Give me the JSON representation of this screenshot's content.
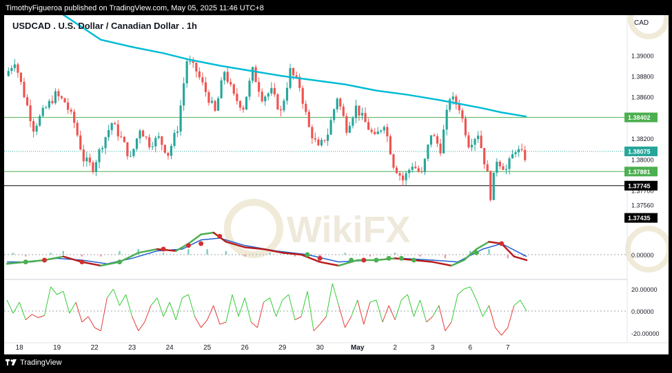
{
  "header": {
    "published": "TimothyFigueroa published on TradingView.com, May 05, 2025 11:46 UTC+8"
  },
  "footer": {
    "brand": "TradingView"
  },
  "colors": {
    "up": "#26a69a",
    "down": "#ef5350",
    "ma": "#00bcd4",
    "green_line": "#4caf50",
    "black_line": "#000000",
    "macd_fast": "#2e7d32",
    "macd_slow": "#1e60d0",
    "macd_dark": "#b71c1c",
    "osc_up": "#33cc33",
    "osc_down": "#e53935"
  },
  "chart_data": {
    "type": "candlestick",
    "title": "USDCAD . U.S. Dollar / Canadian Dollar . 1h",
    "currency": "CAD",
    "x_ticks": [
      "18",
      "19",
      "22",
      "23",
      "24",
      "25",
      "26",
      "29",
      "30",
      "May",
      "2",
      "3",
      "6",
      "7"
    ],
    "y_ticks": [
      "1.39000",
      "1.38800",
      "1.38600",
      "1.38200",
      "1.38000",
      "1.37700",
      "1.37560"
    ],
    "ylim": [
      1.3728,
      1.3932
    ],
    "price_labels": [
      {
        "text": "1.38402",
        "value": 1.38402,
        "bg": "#4caf50",
        "fg": "#ffffff"
      },
      {
        "text": "1.38075",
        "value": 1.38075,
        "bg": "#26a69a",
        "fg": "#ffffff"
      },
      {
        "text": "1.37881",
        "value": 1.37881,
        "bg": "#4caf50",
        "fg": "#ffffff"
      },
      {
        "text": "1.37745",
        "value": 1.37745,
        "bg": "#000000",
        "fg": "#ffffff"
      },
      {
        "text": "1.37435",
        "value": 1.37435,
        "bg": "#000000",
        "fg": "#ffffff"
      }
    ],
    "horizontal_lines": [
      {
        "value": 1.38402,
        "style": "solid",
        "color": "#4caf50"
      },
      {
        "value": 1.37881,
        "style": "solid",
        "color": "#4caf50"
      },
      {
        "value": 1.37745,
        "style": "solid",
        "color": "#000000"
      },
      {
        "value": 1.38075,
        "style": "dotted",
        "color": "#26a69a"
      }
    ],
    "price_path": [
      {
        "t": 0,
        "p": 1.388
      },
      {
        "t": 3,
        "p": 1.3895
      },
      {
        "t": 6,
        "p": 1.3862
      },
      {
        "t": 9,
        "p": 1.383
      },
      {
        "t": 12,
        "p": 1.3845
      },
      {
        "t": 16,
        "p": 1.3862
      },
      {
        "t": 19,
        "p": 1.3855
      },
      {
        "t": 22,
        "p": 1.3835
      },
      {
        "t": 25,
        "p": 1.38
      },
      {
        "t": 28,
        "p": 1.3792
      },
      {
        "t": 31,
        "p": 1.3815
      },
      {
        "t": 34,
        "p": 1.3835
      },
      {
        "t": 37,
        "p": 1.382
      },
      {
        "t": 40,
        "p": 1.38
      },
      {
        "t": 43,
        "p": 1.383
      },
      {
        "t": 46,
        "p": 1.3815
      },
      {
        "t": 49,
        "p": 1.382
      },
      {
        "t": 52,
        "p": 1.3805
      },
      {
        "t": 55,
        "p": 1.383
      },
      {
        "t": 58,
        "p": 1.3895
      },
      {
        "t": 61,
        "p": 1.3885
      },
      {
        "t": 64,
        "p": 1.3865
      },
      {
        "t": 67,
        "p": 1.3845
      },
      {
        "t": 70,
        "p": 1.3885
      },
      {
        "t": 73,
        "p": 1.386
      },
      {
        "t": 76,
        "p": 1.385
      },
      {
        "t": 79,
        "p": 1.3885
      },
      {
        "t": 82,
        "p": 1.386
      },
      {
        "t": 85,
        "p": 1.3865
      },
      {
        "t": 88,
        "p": 1.3845
      },
      {
        "t": 91,
        "p": 1.3885
      },
      {
        "t": 94,
        "p": 1.387
      },
      {
        "t": 97,
        "p": 1.383
      },
      {
        "t": 100,
        "p": 1.381
      },
      {
        "t": 103,
        "p": 1.3825
      },
      {
        "t": 106,
        "p": 1.386
      },
      {
        "t": 109,
        "p": 1.383
      },
      {
        "t": 112,
        "p": 1.385
      },
      {
        "t": 115,
        "p": 1.3835
      },
      {
        "t": 118,
        "p": 1.382
      },
      {
        "t": 121,
        "p": 1.3835
      },
      {
        "t": 124,
        "p": 1.3795
      },
      {
        "t": 127,
        "p": 1.378
      },
      {
        "t": 130,
        "p": 1.3795
      },
      {
        "t": 133,
        "p": 1.3785
      },
      {
        "t": 136,
        "p": 1.3825
      },
      {
        "t": 139,
        "p": 1.381
      },
      {
        "t": 142,
        "p": 1.386
      },
      {
        "t": 145,
        "p": 1.385
      },
      {
        "t": 148,
        "p": 1.3815
      },
      {
        "t": 151,
        "p": 1.3825
      },
      {
        "t": 154,
        "p": 1.3785
      },
      {
        "t": 155,
        "p": 1.3765
      },
      {
        "t": 157,
        "p": 1.38
      },
      {
        "t": 160,
        "p": 1.379
      },
      {
        "t": 163,
        "p": 1.381
      },
      {
        "t": 166,
        "p": 1.3802
      }
    ],
    "moving_average": [
      {
        "t": 0,
        "p": 1.3978
      },
      {
        "t": 10,
        "p": 1.3955
      },
      {
        "t": 20,
        "p": 1.3935
      },
      {
        "t": 30,
        "p": 1.3915
      },
      {
        "t": 40,
        "p": 1.3908
      },
      {
        "t": 50,
        "p": 1.3902
      },
      {
        "t": 58,
        "p": 1.3896
      },
      {
        "t": 68,
        "p": 1.389
      },
      {
        "t": 78,
        "p": 1.3885
      },
      {
        "t": 88,
        "p": 1.388
      },
      {
        "t": 98,
        "p": 1.3876
      },
      {
        "t": 108,
        "p": 1.3872
      },
      {
        "t": 118,
        "p": 1.3866
      },
      {
        "t": 128,
        "p": 1.3862
      },
      {
        "t": 138,
        "p": 1.3857
      },
      {
        "t": 145,
        "p": 1.3853
      },
      {
        "t": 152,
        "p": 1.3849
      },
      {
        "t": 158,
        "p": 1.3845
      },
      {
        "t": 166,
        "p": 1.3841
      }
    ],
    "macd": {
      "zero_label": "0.00000",
      "ylim": [
        -0.0012,
        0.0018
      ],
      "fast": [
        {
          "t": 0,
          "v": -0.0005
        },
        {
          "t": 6,
          "v": -0.0004
        },
        {
          "t": 12,
          "v": -0.0003
        },
        {
          "t": 18,
          "v": -0.0001
        },
        {
          "t": 24,
          "v": -0.0004
        },
        {
          "t": 30,
          "v": -0.0006
        },
        {
          "t": 36,
          "v": -0.0004
        },
        {
          "t": 42,
          "v": 0.0001
        },
        {
          "t": 48,
          "v": 0.0003
        },
        {
          "t": 54,
          "v": 0.0002
        },
        {
          "t": 58,
          "v": 0.0006
        },
        {
          "t": 62,
          "v": 0.0011
        },
        {
          "t": 66,
          "v": 0.0012
        },
        {
          "t": 70,
          "v": 0.0007
        },
        {
          "t": 76,
          "v": 0.0004
        },
        {
          "t": 82,
          "v": 0.0003
        },
        {
          "t": 88,
          "v": 0.0001
        },
        {
          "t": 94,
          "v": 0.0
        },
        {
          "t": 100,
          "v": -0.0004
        },
        {
          "t": 106,
          "v": -0.0006
        },
        {
          "t": 112,
          "v": -0.0003
        },
        {
          "t": 118,
          "v": -0.0003
        },
        {
          "t": 124,
          "v": -0.0002
        },
        {
          "t": 130,
          "v": -0.0003
        },
        {
          "t": 136,
          "v": -0.0004
        },
        {
          "t": 142,
          "v": -0.0006
        },
        {
          "t": 146,
          "v": -0.0003
        },
        {
          "t": 150,
          "v": 0.0003
        },
        {
          "t": 154,
          "v": 0.0007
        },
        {
          "t": 158,
          "v": 0.0006
        },
        {
          "t": 162,
          "v": -0.0001
        },
        {
          "t": 166,
          "v": -0.0003
        }
      ],
      "slow": [
        {
          "t": 0,
          "v": -0.0004
        },
        {
          "t": 8,
          "v": -0.0004
        },
        {
          "t": 16,
          "v": -0.0002
        },
        {
          "t": 24,
          "v": -0.0003
        },
        {
          "t": 32,
          "v": -0.0005
        },
        {
          "t": 40,
          "v": -0.0002
        },
        {
          "t": 48,
          "v": 0.0002
        },
        {
          "t": 56,
          "v": 0.0003
        },
        {
          "t": 62,
          "v": 0.0008
        },
        {
          "t": 68,
          "v": 0.0009
        },
        {
          "t": 76,
          "v": 0.0005
        },
        {
          "t": 86,
          "v": 0.0002
        },
        {
          "t": 96,
          "v": 0.0
        },
        {
          "t": 106,
          "v": -0.0004
        },
        {
          "t": 116,
          "v": -0.0003
        },
        {
          "t": 126,
          "v": -0.0002
        },
        {
          "t": 136,
          "v": -0.0003
        },
        {
          "t": 144,
          "v": -0.0004
        },
        {
          "t": 152,
          "v": 0.0003
        },
        {
          "t": 158,
          "v": 0.0006
        },
        {
          "t": 166,
          "v": -0.0001
        }
      ],
      "histogram": [
        {
          "t": 2,
          "v": 0.0001
        },
        {
          "t": 6,
          "v": -0.0001
        },
        {
          "t": 14,
          "v": 0.0001
        },
        {
          "t": 18,
          "v": 0.0002
        },
        {
          "t": 24,
          "v": -0.0001
        },
        {
          "t": 30,
          "v": -0.0001
        },
        {
          "t": 36,
          "v": 0.0002
        },
        {
          "t": 42,
          "v": 0.0003
        },
        {
          "t": 50,
          "v": 0.0001
        },
        {
          "t": 58,
          "v": 0.0003
        },
        {
          "t": 64,
          "v": 0.0003
        },
        {
          "t": 70,
          "v": 0.0002
        },
        {
          "t": 76,
          "v": -0.0001
        },
        {
          "t": 84,
          "v": 0.0001
        },
        {
          "t": 92,
          "v": -0.0001
        },
        {
          "t": 100,
          "v": -0.0002
        },
        {
          "t": 108,
          "v": 0.0001
        },
        {
          "t": 116,
          "v": -0.0001
        },
        {
          "t": 124,
          "v": 0.0001
        },
        {
          "t": 132,
          "v": -0.0001
        },
        {
          "t": 140,
          "v": -0.0002
        },
        {
          "t": 148,
          "v": 0.0002
        },
        {
          "t": 154,
          "v": 0.0003
        },
        {
          "t": 160,
          "v": -0.0002
        },
        {
          "t": 165,
          "v": -0.0001
        }
      ],
      "cross_points": [
        {
          "t": 6,
          "v": -0.0004,
          "color": "green"
        },
        {
          "t": 12,
          "v": -0.0003,
          "color": "red"
        },
        {
          "t": 24,
          "v": -0.0004,
          "color": "red"
        },
        {
          "t": 36,
          "v": -0.0004,
          "color": "green"
        },
        {
          "t": 50,
          "v": 0.0003,
          "color": "red"
        },
        {
          "t": 58,
          "v": 0.0005,
          "color": "red"
        },
        {
          "t": 62,
          "v": 0.0006,
          "color": "red"
        },
        {
          "t": 68,
          "v": 0.001,
          "color": "red"
        },
        {
          "t": 96,
          "v": 0.0,
          "color": "green"
        },
        {
          "t": 100,
          "v": -0.0002,
          "color": "red"
        },
        {
          "t": 110,
          "v": -0.0003,
          "color": "green"
        },
        {
          "t": 114,
          "v": -0.0003,
          "color": "red"
        },
        {
          "t": 118,
          "v": -0.0003,
          "color": "green"
        },
        {
          "t": 122,
          "v": -0.0002,
          "color": "green"
        },
        {
          "t": 126,
          "v": -0.0002,
          "color": "green"
        },
        {
          "t": 130,
          "v": -0.0003,
          "color": "green"
        },
        {
          "t": 150,
          "v": 0.0001,
          "color": "green"
        },
        {
          "t": 158,
          "v": 0.0006,
          "color": "red"
        }
      ]
    },
    "oscillator": {
      "y_ticks": [
        "20.00000",
        "0.00000",
        "-20.00000"
      ],
      "ylim": [
        -25,
        25
      ],
      "values": [
        {
          "t": 0,
          "v": 10
        },
        {
          "t": 2,
          "v": -2
        },
        {
          "t": 4,
          "v": 8
        },
        {
          "t": 6,
          "v": -8
        },
        {
          "t": 8,
          "v": -3
        },
        {
          "t": 10,
          "v": -6
        },
        {
          "t": 12,
          "v": -4
        },
        {
          "t": 14,
          "v": 22
        },
        {
          "t": 16,
          "v": 15
        },
        {
          "t": 18,
          "v": 18
        },
        {
          "t": 20,
          "v": -2
        },
        {
          "t": 22,
          "v": 8
        },
        {
          "t": 24,
          "v": -10
        },
        {
          "t": 26,
          "v": -5
        },
        {
          "t": 28,
          "v": -15
        },
        {
          "t": 30,
          "v": -18
        },
        {
          "t": 32,
          "v": 12
        },
        {
          "t": 34,
          "v": 20
        },
        {
          "t": 36,
          "v": 5
        },
        {
          "t": 38,
          "v": 15
        },
        {
          "t": 40,
          "v": -5
        },
        {
          "t": 42,
          "v": -18
        },
        {
          "t": 44,
          "v": -10
        },
        {
          "t": 46,
          "v": 5
        },
        {
          "t": 48,
          "v": 12
        },
        {
          "t": 50,
          "v": -5
        },
        {
          "t": 52,
          "v": 8
        },
        {
          "t": 54,
          "v": -8
        },
        {
          "t": 56,
          "v": 12
        },
        {
          "t": 58,
          "v": 15
        },
        {
          "t": 60,
          "v": -5
        },
        {
          "t": 62,
          "v": -15
        },
        {
          "t": 64,
          "v": -8
        },
        {
          "t": 66,
          "v": 5
        },
        {
          "t": 68,
          "v": -12
        },
        {
          "t": 70,
          "v": -10
        },
        {
          "t": 72,
          "v": 15
        },
        {
          "t": 74,
          "v": -5
        },
        {
          "t": 76,
          "v": 12
        },
        {
          "t": 78,
          "v": -10
        },
        {
          "t": 80,
          "v": -15
        },
        {
          "t": 82,
          "v": 8
        },
        {
          "t": 84,
          "v": 12
        },
        {
          "t": 86,
          "v": -5
        },
        {
          "t": 88,
          "v": 10
        },
        {
          "t": 90,
          "v": 15
        },
        {
          "t": 92,
          "v": -8
        },
        {
          "t": 94,
          "v": -5
        },
        {
          "t": 96,
          "v": 18
        },
        {
          "t": 98,
          "v": -18
        },
        {
          "t": 100,
          "v": -12
        },
        {
          "t": 102,
          "v": -5
        },
        {
          "t": 104,
          "v": 25
        },
        {
          "t": 106,
          "v": 5
        },
        {
          "t": 108,
          "v": -15
        },
        {
          "t": 110,
          "v": -5
        },
        {
          "t": 112,
          "v": 10
        },
        {
          "t": 114,
          "v": -12
        },
        {
          "t": 116,
          "v": 8
        },
        {
          "t": 118,
          "v": 10
        },
        {
          "t": 120,
          "v": -10
        },
        {
          "t": 122,
          "v": 5
        },
        {
          "t": 124,
          "v": -8
        },
        {
          "t": 126,
          "v": 10
        },
        {
          "t": 128,
          "v": 15
        },
        {
          "t": 130,
          "v": -5
        },
        {
          "t": 132,
          "v": 10
        },
        {
          "t": 134,
          "v": -10
        },
        {
          "t": 136,
          "v": -5
        },
        {
          "t": 138,
          "v": 5
        },
        {
          "t": 140,
          "v": -18
        },
        {
          "t": 142,
          "v": -10
        },
        {
          "t": 144,
          "v": 15
        },
        {
          "t": 146,
          "v": 20
        },
        {
          "t": 148,
          "v": 22
        },
        {
          "t": 150,
          "v": 10
        },
        {
          "t": 152,
          "v": -5
        },
        {
          "t": 154,
          "v": 5
        },
        {
          "t": 156,
          "v": -15
        },
        {
          "t": 158,
          "v": -22
        },
        {
          "t": 160,
          "v": -15
        },
        {
          "t": 162,
          "v": 5
        },
        {
          "t": 164,
          "v": 10
        },
        {
          "t": 166,
          "v": 0
        }
      ]
    },
    "watermark": "WikiFX"
  }
}
